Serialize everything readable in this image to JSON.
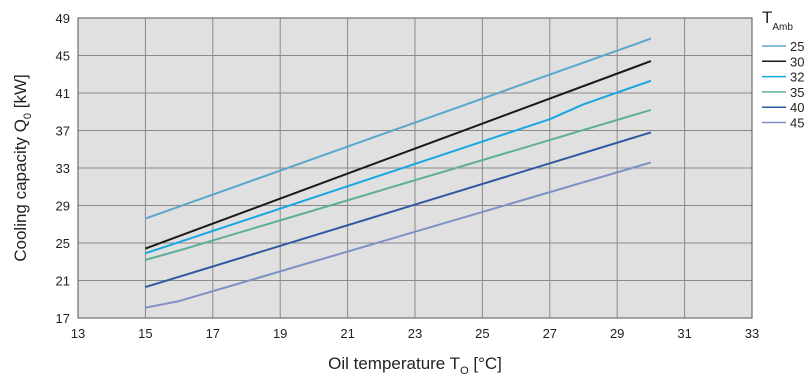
{
  "chart_data": {
    "type": "line",
    "xlabel": {
      "main": "Oil temperature T",
      "sub": "O",
      "unit": " [°C]"
    },
    "ylabel": {
      "main": "Cooling capacity Q",
      "sub": "0",
      "unit": " [kW]"
    },
    "xlim": [
      13,
      33
    ],
    "ylim": [
      17,
      49
    ],
    "xticks": [
      13,
      15,
      17,
      19,
      21,
      23,
      25,
      27,
      29,
      31,
      33
    ],
    "yticks": [
      17,
      21,
      25,
      29,
      33,
      37,
      41,
      45,
      49
    ],
    "grid": true,
    "legend_position": "right",
    "legend_title": {
      "main": "T",
      "sub": "Amb"
    },
    "plot_background": "#e0e0e0",
    "grid_color": "#8a8a8a",
    "series": [
      {
        "name": "25",
        "color": "#5aa6cc",
        "x": [
          15,
          30
        ],
        "y": [
          27.6,
          46.8
        ]
      },
      {
        "name": "30",
        "color": "#1a1a1a",
        "x": [
          15,
          30
        ],
        "y": [
          24.4,
          44.4
        ]
      },
      {
        "name": "32",
        "color": "#19a7e0",
        "x": [
          15,
          27,
          28,
          30
        ],
        "y": [
          23.9,
          38.2,
          39.8,
          42.3
        ]
      },
      {
        "name": "35",
        "color": "#5fae9c",
        "x": [
          15,
          16,
          30
        ],
        "y": [
          23.2,
          24.2,
          39.2
        ]
      },
      {
        "name": "40",
        "color": "#2f58a0",
        "x": [
          15,
          30
        ],
        "y": [
          20.3,
          36.8
        ]
      },
      {
        "name": "45",
        "color": "#7e90c6",
        "x": [
          15,
          16,
          30
        ],
        "y": [
          18.1,
          18.8,
          33.6
        ]
      }
    ]
  }
}
